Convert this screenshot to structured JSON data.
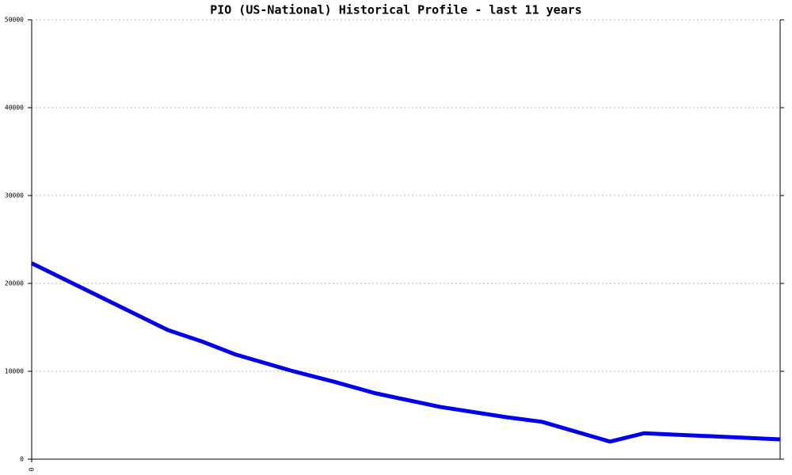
{
  "chart_data": {
    "type": "line",
    "title": "PIO (US-National) Historical Profile - last 11 years",
    "x": [
      0,
      4,
      5,
      6,
      7.6,
      8.9,
      10.1,
      12,
      14,
      15,
      17,
      18,
      22
    ],
    "series": [
      {
        "color": "#0000ee",
        "values": [
          22300,
          14700,
          13400,
          11900,
          10100,
          8800,
          7500,
          5950,
          4750,
          4250,
          2000,
          2950,
          2250
        ]
      }
    ],
    "xlim": [
      0,
      22
    ],
    "xticks": [
      0
    ],
    "ylim": [
      0,
      50000
    ],
    "yticks": [
      0,
      10000,
      20000,
      30000,
      40000,
      50000
    ],
    "grid": true
  }
}
